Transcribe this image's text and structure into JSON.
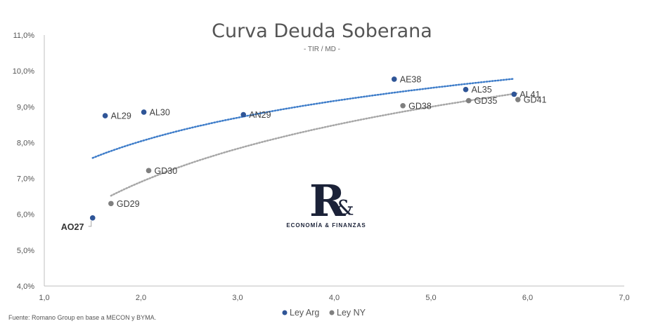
{
  "source_note": "Fuente: Romano Group en base a MECON y BYMA.",
  "logo": {
    "mark": "R",
    "amp": "&",
    "text": "ECONOMÍA & FINANZAS"
  },
  "colors": {
    "ley_arg": "#2f5597",
    "ley_ny": "#7f7f7f",
    "trend_arg": "#3d7cc9",
    "trend_ny": "#a6a6a6"
  },
  "chart_data": {
    "type": "scatter",
    "title": "Curva Deuda Soberana",
    "subtitle": "- TIR / MD -",
    "xlim": [
      1.0,
      7.0
    ],
    "ylim": [
      4.0,
      11.0
    ],
    "x_ticks": [
      "1,0",
      "2,0",
      "3,0",
      "4,0",
      "5,0",
      "6,0",
      "7,0"
    ],
    "y_ticks": [
      "4,0%",
      "5,0%",
      "6,0%",
      "7,0%",
      "8,0%",
      "9,0%",
      "10,0%",
      "11,0%"
    ],
    "grid": false,
    "legend_position": "bottom",
    "series": [
      {
        "name": "Ley Arg",
        "color": "#2f5597",
        "points": [
          {
            "label": "AO27",
            "x": 1.5,
            "y": 5.9
          },
          {
            "label": "AL29",
            "x": 1.63,
            "y": 8.75
          },
          {
            "label": "AL30",
            "x": 2.03,
            "y": 8.85
          },
          {
            "label": "AN29",
            "x": 3.06,
            "y": 8.78
          },
          {
            "label": "AE38",
            "x": 4.62,
            "y": 9.77
          },
          {
            "label": "AL35",
            "x": 5.36,
            "y": 9.48
          },
          {
            "label": "AL41",
            "x": 5.86,
            "y": 9.35
          }
        ],
        "trendline": {
          "type": "logarithmic",
          "x_range": [
            1.5,
            5.86
          ]
        }
      },
      {
        "name": "Ley NY",
        "color": "#7f7f7f",
        "points": [
          {
            "label": "GD29",
            "x": 1.69,
            "y": 6.3
          },
          {
            "label": "GD30",
            "x": 2.08,
            "y": 7.22
          },
          {
            "label": "GD38",
            "x": 4.71,
            "y": 9.03
          },
          {
            "label": "GD35",
            "x": 5.39,
            "y": 9.17
          },
          {
            "label": "GD41",
            "x": 5.9,
            "y": 9.2
          }
        ],
        "trendline": {
          "type": "logarithmic",
          "x_range": [
            1.69,
            5.9
          ]
        }
      }
    ]
  }
}
